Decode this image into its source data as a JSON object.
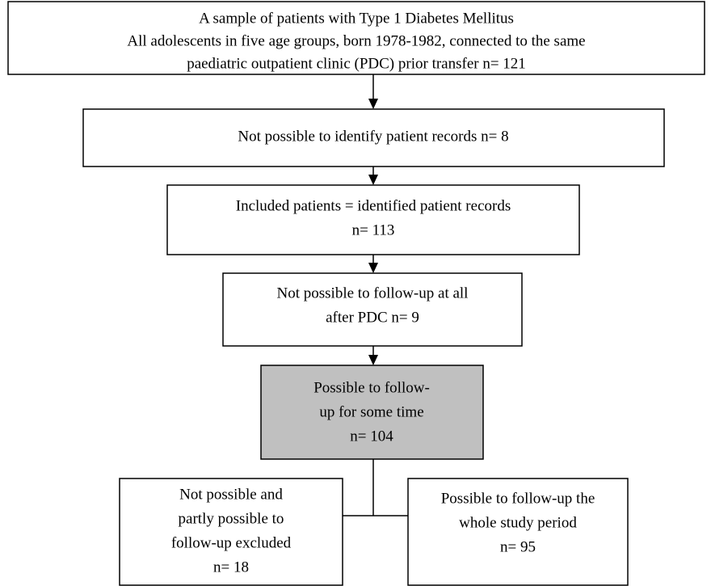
{
  "nodes": [
    {
      "lines": [
        "A sample of patients with Type 1 Diabetes Mellitus",
        "All adolescents in five age groups, born 1978-1982, connected to the same",
        "paediatric outpatient clinic (PDC) prior transfer n= 121"
      ]
    },
    {
      "lines": [
        "Not possible to identify patient records n= 8"
      ]
    },
    {
      "lines": [
        "Included patients = identified patient records",
        "n= 113"
      ]
    },
    {
      "lines": [
        "Not possible to follow-up at all",
        "after PDC n= 9"
      ]
    },
    {
      "lines": [
        "Possible to follow-",
        "up for some time",
        "n= 104"
      ]
    },
    {
      "lines": [
        "Not possible and",
        "partly possible to",
        "follow-up excluded",
        "n= 18"
      ]
    },
    {
      "lines": [
        "Possible to follow-up the",
        "whole study period",
        "n= 95"
      ]
    }
  ]
}
